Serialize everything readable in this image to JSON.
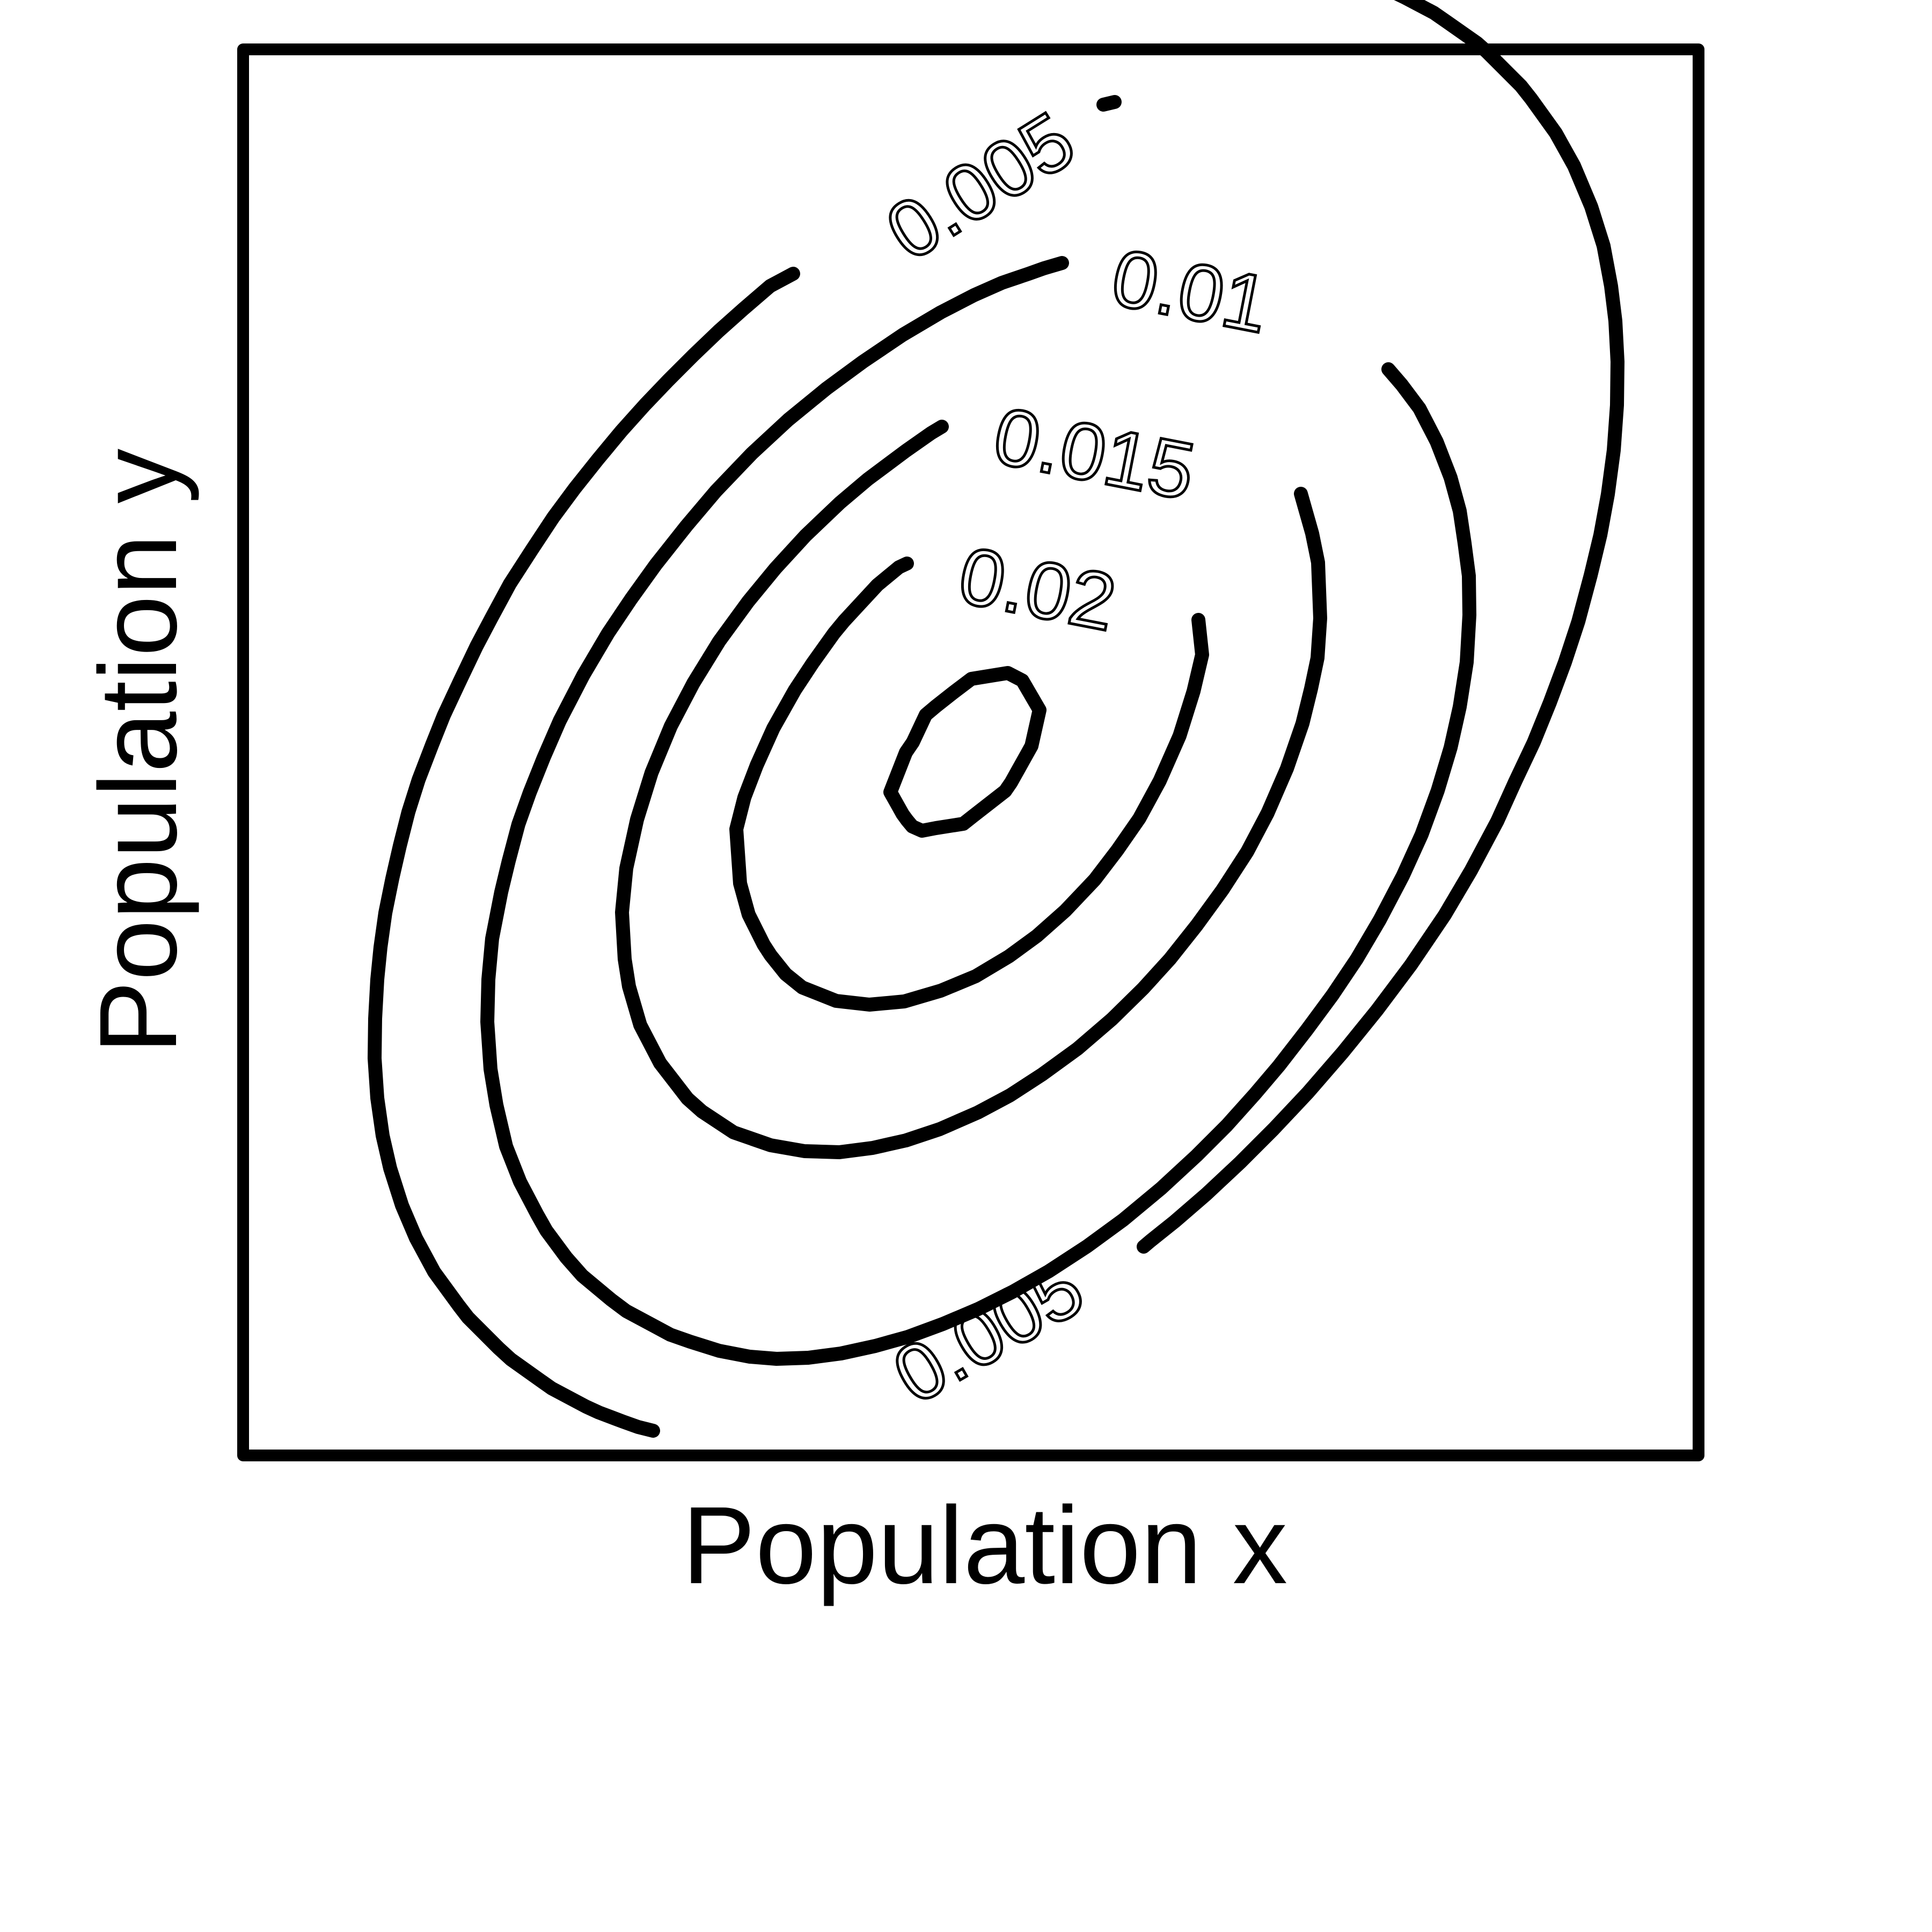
{
  "chart_data": {
    "type": "contour",
    "xlabel": "Population x",
    "ylabel": "Population y",
    "xlim": [
      0,
      1
    ],
    "ylim": [
      0,
      1
    ],
    "grid": false,
    "line_color": "#000000",
    "levels": [
      {
        "level": 0.005,
        "label": "0.005"
      },
      {
        "level": 0.01,
        "label": "0.01"
      },
      {
        "level": 0.015,
        "label": "0.015"
      },
      {
        "level": 0.02,
        "label": "0.02"
      },
      {
        "level": 0.025,
        "label": ""
      }
    ],
    "labels_shown": [
      "0.005",
      "0.01",
      "0.015",
      "0.02",
      "0.005"
    ]
  }
}
